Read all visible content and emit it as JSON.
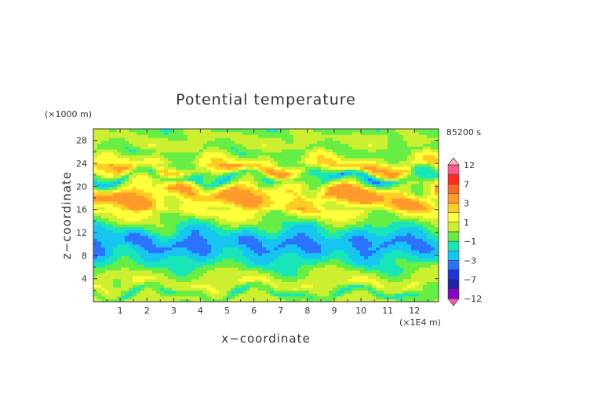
{
  "chart_data": {
    "type": "heatmap",
    "title": "Potential temperature",
    "time_label": "85200 s",
    "xlabel": "x−coordinate",
    "ylabel": "z−coordinate",
    "x_unit": "(×1E4 m)",
    "y_unit": "(×1000 m)",
    "xlim": [
      0,
      12.9
    ],
    "ylim": [
      0,
      30
    ],
    "x_ticks": [
      "1",
      "2",
      "3",
      "4",
      "5",
      "6",
      "7",
      "8",
      "9",
      "10",
      "11",
      "12"
    ],
    "y_ticks": [
      "4",
      "8",
      "12",
      "16",
      "20",
      "24",
      "28"
    ],
    "colorbar": {
      "levels": [
        -12,
        -9,
        -7,
        -5,
        -3,
        -2,
        -1,
        0,
        1,
        2,
        3,
        5,
        7,
        9,
        12
      ],
      "labels": [
        "12",
        "7",
        "3",
        "1",
        "−1",
        "−3",
        "−7",
        "−12"
      ],
      "colors": [
        "#ff55b0",
        "#8800cc",
        "#2222aa",
        "#1a33dd",
        "#2b72ff",
        "#16c6f0",
        "#19e6b8",
        "#66ee44",
        "#ccf030",
        "#ffff3a",
        "#ffcc22",
        "#ff9a2a",
        "#ff6622",
        "#ff2a22",
        "#ff5a8a",
        "#ffb4c4"
      ],
      "extend": "both"
    },
    "bands": [
      {
        "z": 0.6,
        "value": 0.5
      },
      {
        "z": 1.5,
        "value": -1.5
      },
      {
        "z": 3.0,
        "value": 1.0
      },
      {
        "z": 5.0,
        "value": 0.0
      },
      {
        "z": 7.0,
        "value": -1.5
      },
      {
        "z": 8.5,
        "value": -2.5
      },
      {
        "z": 10.0,
        "value": -3.2
      },
      {
        "z": 11.5,
        "value": -2.6
      },
      {
        "z": 13.0,
        "value": -1.2
      },
      {
        "z": 14.5,
        "value": 0.3
      },
      {
        "z": 16.0,
        "value": 1.5
      },
      {
        "z": 17.5,
        "value": 2.5
      },
      {
        "z": 19.0,
        "value": 3.2
      },
      {
        "z": 20.5,
        "value": 0.5
      },
      {
        "z": 21.5,
        "value": -2.0
      },
      {
        "z": 23.0,
        "value": 2.0
      },
      {
        "z": 24.5,
        "value": 1.0
      },
      {
        "z": 26.0,
        "value": -0.5
      },
      {
        "z": 28.0,
        "value": 0.5
      },
      {
        "z": 30.0,
        "value": -0.5
      }
    ]
  }
}
